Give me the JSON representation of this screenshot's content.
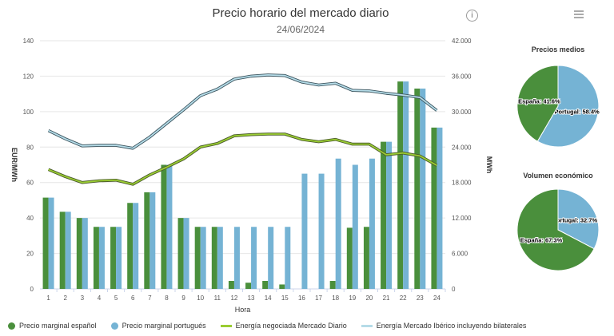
{
  "title": "Precio horario del mercado diario",
  "subtitle": "24/06/2024",
  "icons": {
    "info": "info-icon",
    "menu": "hamburger-menu-icon"
  },
  "colors": {
    "spain": "#4a8f3c",
    "portugal": "#75b3d4",
    "energy_daily": "#9acd32",
    "energy_iberian": "#b5dce8",
    "iberian_stroke": "#3d5660",
    "daily_stroke": "#4a5a2a"
  },
  "legend": {
    "spain_price": "Precio marginal español",
    "portugal_price": "Precio marginal portugués",
    "energy_daily": "Energía negociada Mercado Diario",
    "energy_iberian": "Energía Mercado Ibérico incluyendo bilaterales"
  },
  "chart_data": {
    "type": "bar",
    "title": "Precio horario del mercado diario",
    "subtitle": "24/06/2024",
    "xlabel": "Hora",
    "ylabel": "EUR/MWh",
    "y2label": "MWh",
    "ylim": [
      0,
      140
    ],
    "y2lim": [
      0,
      42000
    ],
    "yticks": [
      "0",
      "20",
      "40",
      "60",
      "80",
      "100",
      "120",
      "140"
    ],
    "y2ticks": [
      "0",
      "6.000",
      "12.000",
      "18.000",
      "24.000",
      "30.000",
      "36.000",
      "42.000"
    ],
    "categories": [
      "1",
      "2",
      "3",
      "4",
      "5",
      "6",
      "7",
      "8",
      "9",
      "10",
      "11",
      "12",
      "13",
      "14",
      "15",
      "16",
      "17",
      "18",
      "19",
      "20",
      "21",
      "22",
      "23",
      "24"
    ],
    "grid": true,
    "series": [
      {
        "name": "Precio marginal español",
        "type": "bar",
        "axis": "left",
        "values": [
          51.5,
          43.5,
          40,
          35,
          35,
          48.5,
          54.5,
          70,
          40,
          35,
          35,
          4.5,
          3.5,
          4.5,
          2.5,
          0,
          0,
          4.5,
          34.5,
          35,
          83,
          117,
          113,
          91
        ]
      },
      {
        "name": "Precio marginal portugués",
        "type": "bar",
        "axis": "left",
        "values": [
          51.5,
          43.5,
          40,
          35,
          35,
          48.5,
          54.5,
          70,
          40,
          35,
          35,
          35,
          35,
          35,
          35,
          65,
          65,
          73.5,
          70,
          73.5,
          83,
          117,
          113,
          91
        ]
      },
      {
        "name": "Energía negociada Mercado Diario",
        "type": "line",
        "axis": "right",
        "values": [
          20200,
          19000,
          18000,
          18300,
          18400,
          17700,
          19300,
          20600,
          22000,
          24000,
          24600,
          25900,
          26100,
          26200,
          26200,
          25300,
          24900,
          25300,
          24500,
          24500,
          22700,
          23000,
          22500,
          20900
        ]
      },
      {
        "name": "Energía Mercado Ibérico incluyendo bilaterales",
        "type": "line",
        "axis": "right",
        "values": [
          26800,
          25400,
          24200,
          24300,
          24300,
          23800,
          25700,
          28000,
          30300,
          32700,
          33800,
          35500,
          36000,
          36200,
          36100,
          35000,
          34500,
          34800,
          33600,
          33500,
          33100,
          32800,
          32400,
          30200
        ]
      }
    ]
  },
  "pies": [
    {
      "title": "Precios medios",
      "slices": [
        {
          "label": "Portugal: 58.4%",
          "value": 58.4
        },
        {
          "label": "España: 41.6%",
          "value": 41.6
        }
      ]
    },
    {
      "title": "Volumen económico",
      "slices": [
        {
          "label": "Portugal: 32.7%",
          "value": 32.7
        },
        {
          "label": "España: 67.3%",
          "value": 67.3
        }
      ]
    }
  ]
}
